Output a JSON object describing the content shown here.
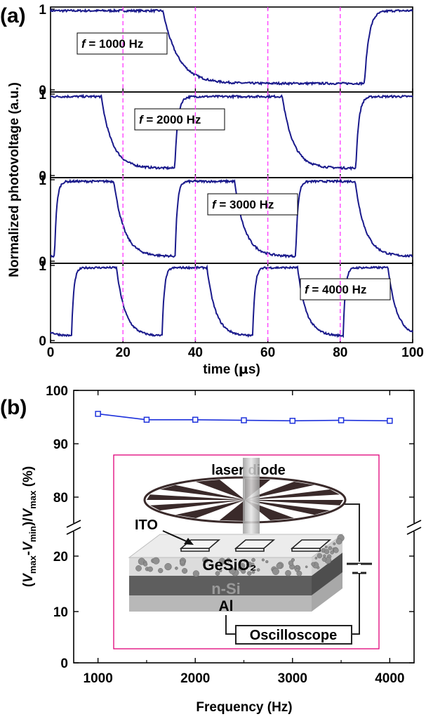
{
  "chart_data": [
    {
      "panel": "(a)",
      "type": "line",
      "xlabel_prefix": "time (",
      "xlabel_mu": "μ",
      "xlabel_suffix": "s)",
      "ylabel": "Normalized photovoltage (a.u.)",
      "xlim": [
        0,
        100
      ],
      "xticks": [
        "0",
        "20",
        "40",
        "60",
        "80",
        "100"
      ],
      "dashed_verticals": [
        20,
        40,
        60,
        80
      ],
      "dashed_color": "#ff44ff",
      "line_color": "#1a1a8c",
      "subplots": [
        {
          "f_symbol": "f",
          "f_label": "= 1000 Hz",
          "ylim": [
            0,
            1
          ],
          "yticks": [
            "0",
            "1"
          ],
          "waveform": {
            "period": 100,
            "rise_start": 86.7,
            "fall_start": 31.0,
            "high": 0.98,
            "low": 0.08,
            "rise_tau": 1.2,
            "fall_tau": 4.2
          }
        },
        {
          "f_symbol": "f",
          "f_label": "= 2000 Hz",
          "ylim": [
            0,
            1
          ],
          "yticks": [
            "0",
            "1"
          ],
          "waveform": {
            "period": 50,
            "rise_start": 34.3,
            "fall_start": 14.0,
            "high": 0.97,
            "low": 0.09,
            "rise_tau": 0.8,
            "fall_tau": 3.0
          }
        },
        {
          "f_symbol": "f",
          "f_label": "= 3000 Hz",
          "ylim": [
            0,
            1
          ],
          "yticks": [
            "0",
            "1"
          ],
          "waveform": {
            "period": 33.3,
            "rise_start": 1.1,
            "fall_start": 17.5,
            "high": 0.98,
            "low": 0.06,
            "rise_tau": 0.6,
            "fall_tau": 2.8
          }
        },
        {
          "f_symbol": "f",
          "f_label": "= 4000 Hz",
          "ylim": [
            0,
            1
          ],
          "yticks": [
            "0",
            "1"
          ],
          "waveform": {
            "period": 25,
            "rise_start": 5.8,
            "fall_start": 18.2,
            "high": 0.97,
            "low": 0.06,
            "rise_tau": 0.6,
            "fall_tau": 2.4
          }
        }
      ]
    },
    {
      "panel": "(b)",
      "type": "line",
      "xlabel": "Frequency (Hz)",
      "ylabel_parts": {
        "open": "(",
        "v1": "V",
        "s1": "max",
        "dash": "-",
        "v2": "V",
        "s2": "min",
        "mid": ")/",
        "v3": "V",
        "s3": "max",
        "close": " (%)"
      },
      "xlim": [
        750,
        4250
      ],
      "xticks": [
        1000,
        2000,
        3000,
        4000
      ],
      "yticks_lower": [
        0,
        10,
        20
      ],
      "yticks_upper": [
        80,
        90,
        100
      ],
      "ylim_lower": [
        0,
        25
      ],
      "ylim_upper": [
        75,
        100
      ],
      "axis_break": true,
      "line_color": "#1e32dc",
      "series": [
        {
          "name": "(Vmax-Vmin)/Vmax",
          "x": [
            1000,
            1500,
            2000,
            2500,
            3000,
            3500,
            4000
          ],
          "y": [
            95.6,
            94.5,
            94.5,
            94.4,
            94.3,
            94.4,
            94.3
          ]
        }
      ],
      "inset": {
        "frame_color": "#e0007a",
        "laser_label": "laser diode",
        "ito_label": "ITO",
        "gesio2_label": "GeSiO₂",
        "nsi_label": "n-Si",
        "al_label": "Al",
        "scope_label": "Oscilloscope",
        "gesio2_color": "#a0283c"
      }
    }
  ]
}
